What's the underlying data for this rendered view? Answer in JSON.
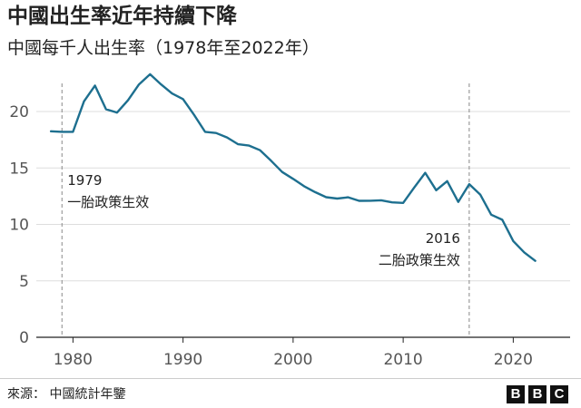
{
  "header": {
    "title": "中國出生率近年持續下降",
    "subtitle": "中國每千人出生率（1978年至2022年）"
  },
  "footer": {
    "source": "來源： 中國統計年鑒",
    "logo_letters": [
      "B",
      "B",
      "C"
    ]
  },
  "colors": {
    "line": "#1d6f8f",
    "grid": "#dddddd",
    "axis": "#222222",
    "annotation_line": "#888888"
  },
  "chart_data": {
    "type": "line",
    "title": "",
    "xlabel": "",
    "ylabel": "",
    "xlim": [
      1977,
      2025
    ],
    "ylim": [
      0,
      24
    ],
    "grid": true,
    "x_ticks": [
      1980,
      1990,
      2000,
      2010,
      2020
    ],
    "y_ticks": [
      0,
      5,
      10,
      15,
      20
    ],
    "series": [
      {
        "x": [
          1978,
          1979,
          1980,
          1981,
          1982,
          1983,
          1984,
          1985,
          1986,
          1987,
          1988,
          1989,
          1990,
          1991,
          1992,
          1993,
          1994,
          1995,
          1996,
          1997,
          1998,
          1999,
          2000,
          2001,
          2002,
          2003,
          2004,
          2005,
          2006,
          2007,
          2008,
          2009,
          2010,
          2011,
          2012,
          2013,
          2014,
          2015,
          2016,
          2017,
          2018,
          2019,
          2020,
          2021,
          2022
        ],
        "values": [
          18.25,
          18.2,
          18.2,
          20.9,
          22.3,
          20.2,
          19.9,
          21.0,
          22.4,
          23.3,
          22.4,
          21.6,
          21.1,
          19.7,
          18.2,
          18.1,
          17.7,
          17.1,
          16.98,
          16.57,
          15.64,
          14.64,
          14.03,
          13.38,
          12.86,
          12.41,
          12.29,
          12.4,
          12.09,
          12.1,
          12.14,
          11.95,
          11.9,
          13.27,
          14.57,
          13.03,
          13.83,
          11.99,
          13.57,
          12.64,
          10.86,
          10.41,
          8.52,
          7.52,
          6.77
        ]
      }
    ],
    "annotations": [
      {
        "x": 1979,
        "label_year": "1979",
        "label_text": "一胎政策生效"
      },
      {
        "x": 2016,
        "label_year": "2016",
        "label_text": "二胎政策生效"
      }
    ]
  }
}
